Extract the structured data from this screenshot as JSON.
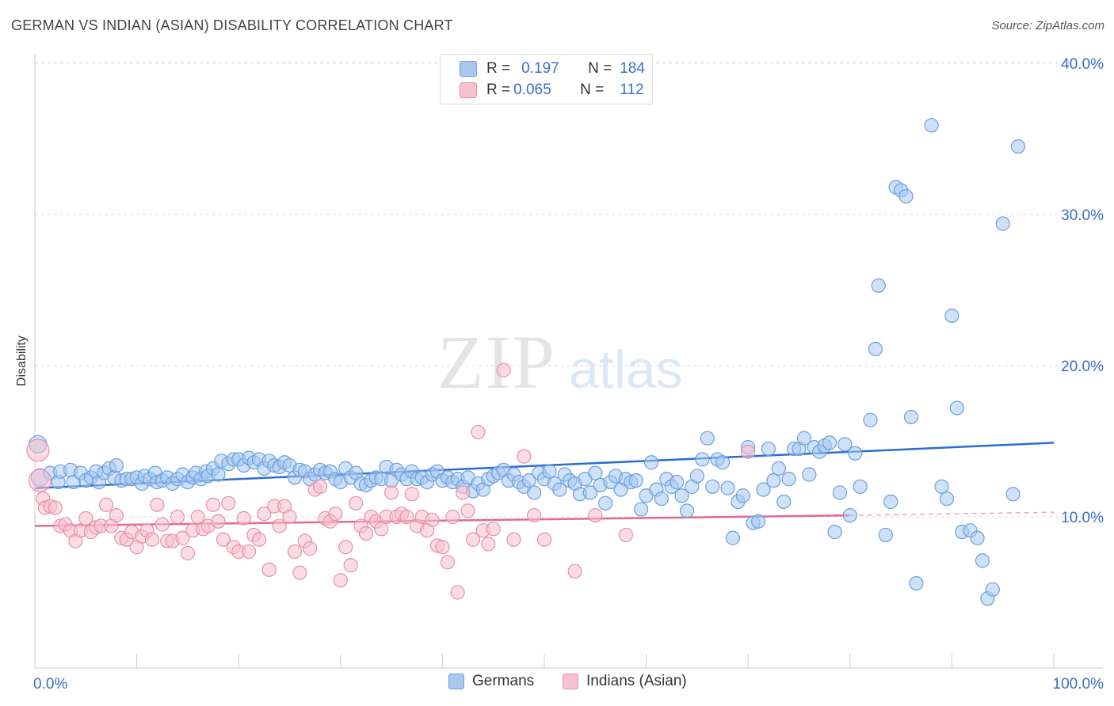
{
  "header": {
    "title": "GERMAN VS INDIAN (ASIAN) DISABILITY CORRELATION CHART",
    "source": "Source: ZipAtlas.com"
  },
  "watermark": {
    "zip": "ZIP",
    "atlas": "atlas"
  },
  "legend": {
    "rows": [
      {
        "r_label": "R =",
        "r_value": "0.197",
        "n_label": "N =",
        "n_value": "184",
        "color": "#a8c8f0",
        "border": "#6a9fe0"
      },
      {
        "r_label": "R =",
        "r_value": "0.065",
        "n_label": "N =",
        "n_value": "112",
        "color": "#f8c0d0",
        "border": "#e890a8"
      }
    ]
  },
  "bottom_legend": [
    {
      "label": "Germans",
      "color": "#a8c8f0",
      "border": "#6a9fe0"
    },
    {
      "label": "Indians (Asian)",
      "color": "#f8c0d0",
      "border": "#e890a8"
    }
  ],
  "chart_data": {
    "type": "scatter",
    "title": "GERMAN VS INDIAN (ASIAN) DISABILITY CORRELATION CHART",
    "xlabel": "",
    "ylabel": "Disability",
    "xlim": [
      0,
      100
    ],
    "ylim": [
      0,
      42
    ],
    "x_tick_labels": [
      "0.0%",
      "100.0%"
    ],
    "y_ticks": [
      10,
      20,
      30,
      40
    ],
    "y_tick_labels": [
      "10.0%",
      "20.0%",
      "30.0%",
      "40.0%"
    ],
    "grid": true,
    "legend_position": "top-center",
    "series": [
      {
        "name": "Germans",
        "color": "#6a9fe0",
        "fill": "#a8c8f0",
        "trend": {
          "x": [
            0,
            100
          ],
          "y": [
            11.9,
            14.9
          ],
          "color": "#2a6dd0"
        },
        "points": [
          [
            0.3,
            14.8
          ],
          [
            0.5,
            12.6
          ],
          [
            1.5,
            12.9
          ],
          [
            2.3,
            12.3
          ],
          [
            2.5,
            13.0
          ],
          [
            3.5,
            13.1
          ],
          [
            3.8,
            12.3
          ],
          [
            4.5,
            12.9
          ],
          [
            5.0,
            12.4
          ],
          [
            5.5,
            12.6
          ],
          [
            6.0,
            13.0
          ],
          [
            6.3,
            12.3
          ],
          [
            6.8,
            12.9
          ],
          [
            7.3,
            13.2
          ],
          [
            7.8,
            12.6
          ],
          [
            8.0,
            13.4
          ],
          [
            8.5,
            12.4
          ],
          [
            9.0,
            12.5
          ],
          [
            9.5,
            12.5
          ],
          [
            10.0,
            12.6
          ],
          [
            10.5,
            12.2
          ],
          [
            10.8,
            12.7
          ],
          [
            11.3,
            12.5
          ],
          [
            11.8,
            12.9
          ],
          [
            12.0,
            12.3
          ],
          [
            12.5,
            12.4
          ],
          [
            13.0,
            12.6
          ],
          [
            13.5,
            12.2
          ],
          [
            14.0,
            12.5
          ],
          [
            14.5,
            12.8
          ],
          [
            15.0,
            12.3
          ],
          [
            15.5,
            12.6
          ],
          [
            15.8,
            12.9
          ],
          [
            16.3,
            12.5
          ],
          [
            16.8,
            13.0
          ],
          [
            17.0,
            12.7
          ],
          [
            17.5,
            13.2
          ],
          [
            18.0,
            12.8
          ],
          [
            18.3,
            13.7
          ],
          [
            19.0,
            13.5
          ],
          [
            19.5,
            13.8
          ],
          [
            20.0,
            13.8
          ],
          [
            20.5,
            13.4
          ],
          [
            21.0,
            13.9
          ],
          [
            21.5,
            13.6
          ],
          [
            22.0,
            13.8
          ],
          [
            22.5,
            13.2
          ],
          [
            23.0,
            13.7
          ],
          [
            23.5,
            13.4
          ],
          [
            24.0,
            13.3
          ],
          [
            24.5,
            13.6
          ],
          [
            25.0,
            13.4
          ],
          [
            25.5,
            12.6
          ],
          [
            26.0,
            13.1
          ],
          [
            26.5,
            13.0
          ],
          [
            27.0,
            12.5
          ],
          [
            27.5,
            12.8
          ],
          [
            28.0,
            13.1
          ],
          [
            28.5,
            12.9
          ],
          [
            29.0,
            13.0
          ],
          [
            29.5,
            12.5
          ],
          [
            30.0,
            12.3
          ],
          [
            30.5,
            13.2
          ],
          [
            31.0,
            12.6
          ],
          [
            31.5,
            12.9
          ],
          [
            32.0,
            12.2
          ],
          [
            32.5,
            12.1
          ],
          [
            33.0,
            12.4
          ],
          [
            33.5,
            12.6
          ],
          [
            34.0,
            12.5
          ],
          [
            34.5,
            13.3
          ],
          [
            35.0,
            12.4
          ],
          [
            35.5,
            13.1
          ],
          [
            36.0,
            12.8
          ],
          [
            36.5,
            12.5
          ],
          [
            37.0,
            13.0
          ],
          [
            37.5,
            12.5
          ],
          [
            38.0,
            12.6
          ],
          [
            38.5,
            12.3
          ],
          [
            39.0,
            12.8
          ],
          [
            39.5,
            13.0
          ],
          [
            40.0,
            12.4
          ],
          [
            40.5,
            12.6
          ],
          [
            41.0,
            12.3
          ],
          [
            41.5,
            12.5
          ],
          [
            42.0,
            12.0
          ],
          [
            42.5,
            12.6
          ],
          [
            43.0,
            11.7
          ],
          [
            43.5,
            12.2
          ],
          [
            44.0,
            11.8
          ],
          [
            44.5,
            12.5
          ],
          [
            45.0,
            12.7
          ],
          [
            45.5,
            12.9
          ],
          [
            46.0,
            13.1
          ],
          [
            46.5,
            12.4
          ],
          [
            47.0,
            12.8
          ],
          [
            47.5,
            12.3
          ],
          [
            48.0,
            12.0
          ],
          [
            48.5,
            12.4
          ],
          [
            49.0,
            11.6
          ],
          [
            49.5,
            12.9
          ],
          [
            50.0,
            12.5
          ],
          [
            50.5,
            13.0
          ],
          [
            51.0,
            12.2
          ],
          [
            51.5,
            11.8
          ],
          [
            52.0,
            12.8
          ],
          [
            52.5,
            12.4
          ],
          [
            53.0,
            12.2
          ],
          [
            53.5,
            11.5
          ],
          [
            54.0,
            12.5
          ],
          [
            54.5,
            11.6
          ],
          [
            55.0,
            12.9
          ],
          [
            55.5,
            12.1
          ],
          [
            56.0,
            10.9
          ],
          [
            56.5,
            12.3
          ],
          [
            57.0,
            12.7
          ],
          [
            57.5,
            11.8
          ],
          [
            58.0,
            12.5
          ],
          [
            58.5,
            12.3
          ],
          [
            59.0,
            12.4
          ],
          [
            59.5,
            10.5
          ],
          [
            60.0,
            11.4
          ],
          [
            60.5,
            13.6
          ],
          [
            61.0,
            11.8
          ],
          [
            61.5,
            11.2
          ],
          [
            62.0,
            12.5
          ],
          [
            62.5,
            12.0
          ],
          [
            63.0,
            12.3
          ],
          [
            63.5,
            11.4
          ],
          [
            64.0,
            10.4
          ],
          [
            64.5,
            12.0
          ],
          [
            65.0,
            12.7
          ],
          [
            65.5,
            13.8
          ],
          [
            66.0,
            15.2
          ],
          [
            66.5,
            12.0
          ],
          [
            67.0,
            13.8
          ],
          [
            67.5,
            13.6
          ],
          [
            68.0,
            11.9
          ],
          [
            68.5,
            8.6
          ],
          [
            69.0,
            11.0
          ],
          [
            69.5,
            11.4
          ],
          [
            70.0,
            14.6
          ],
          [
            70.5,
            9.6
          ],
          [
            71.0,
            9.7
          ],
          [
            71.5,
            11.8
          ],
          [
            72.0,
            14.5
          ],
          [
            72.5,
            12.4
          ],
          [
            73.0,
            13.2
          ],
          [
            73.5,
            11.0
          ],
          [
            74.0,
            12.5
          ],
          [
            74.5,
            14.5
          ],
          [
            75.0,
            14.5
          ],
          [
            75.5,
            15.2
          ],
          [
            76.0,
            12.8
          ],
          [
            76.5,
            14.6
          ],
          [
            77.0,
            14.3
          ],
          [
            77.5,
            14.7
          ],
          [
            78.0,
            14.9
          ],
          [
            78.5,
            9.0
          ],
          [
            79.0,
            11.6
          ],
          [
            79.5,
            14.8
          ],
          [
            80.0,
            10.1
          ],
          [
            80.5,
            14.2
          ],
          [
            81.0,
            12.0
          ],
          [
            82.0,
            16.4
          ],
          [
            82.5,
            21.1
          ],
          [
            82.8,
            25.3
          ],
          [
            83.5,
            8.8
          ],
          [
            84.0,
            11.0
          ],
          [
            84.5,
            31.8
          ],
          [
            85.0,
            31.6
          ],
          [
            85.5,
            31.2
          ],
          [
            86.0,
            16.6
          ],
          [
            86.5,
            5.6
          ],
          [
            88.0,
            35.9
          ],
          [
            89.0,
            12.0
          ],
          [
            89.5,
            11.2
          ],
          [
            90.0,
            23.3
          ],
          [
            90.5,
            17.2
          ],
          [
            91.0,
            9.0
          ],
          [
            91.8,
            9.1
          ],
          [
            92.5,
            8.6
          ],
          [
            93.0,
            7.1
          ],
          [
            93.5,
            4.6
          ],
          [
            94.0,
            5.2
          ],
          [
            95.0,
            29.4
          ],
          [
            96.0,
            11.5
          ],
          [
            96.5,
            34.5
          ]
        ]
      },
      {
        "name": "Indians (Asian)",
        "color": "#e890a8",
        "fill": "#f8c0d0",
        "trend": {
          "x": [
            0,
            80
          ],
          "y": [
            9.4,
            10.1
          ],
          "dashed_x": [
            80,
            100
          ],
          "dashed_y": [
            10.1,
            10.3
          ],
          "color": "#e06a90"
        },
        "points": [
          [
            0.3,
            14.4
          ],
          [
            0.5,
            12.4
          ],
          [
            0.8,
            11.2
          ],
          [
            1.0,
            10.6
          ],
          [
            1.5,
            10.7
          ],
          [
            2.0,
            10.6
          ],
          [
            2.5,
            9.4
          ],
          [
            3.0,
            9.5
          ],
          [
            3.5,
            9.1
          ],
          [
            4.0,
            8.4
          ],
          [
            4.5,
            9.1
          ],
          [
            5.0,
            9.9
          ],
          [
            5.5,
            9.0
          ],
          [
            6.0,
            9.3
          ],
          [
            6.5,
            9.4
          ],
          [
            7.0,
            10.8
          ],
          [
            7.5,
            9.4
          ],
          [
            8.0,
            10.1
          ],
          [
            8.5,
            8.6
          ],
          [
            9.0,
            8.5
          ],
          [
            9.5,
            9.0
          ],
          [
            10.0,
            8.0
          ],
          [
            10.5,
            8.7
          ],
          [
            11.0,
            9.1
          ],
          [
            11.5,
            8.5
          ],
          [
            12.0,
            10.8
          ],
          [
            12.5,
            9.5
          ],
          [
            13.0,
            8.4
          ],
          [
            13.5,
            8.4
          ],
          [
            14.0,
            10.0
          ],
          [
            14.5,
            8.6
          ],
          [
            15.0,
            7.6
          ],
          [
            15.5,
            9.1
          ],
          [
            16.0,
            10.0
          ],
          [
            16.5,
            9.2
          ],
          [
            17.0,
            9.4
          ],
          [
            17.5,
            10.8
          ],
          [
            18.0,
            9.7
          ],
          [
            18.5,
            8.5
          ],
          [
            19.0,
            10.9
          ],
          [
            19.5,
            8.0
          ],
          [
            20.0,
            7.7
          ],
          [
            20.5,
            9.9
          ],
          [
            21.0,
            7.7
          ],
          [
            21.5,
            8.8
          ],
          [
            22.0,
            8.5
          ],
          [
            22.5,
            10.2
          ],
          [
            23.0,
            6.5
          ],
          [
            23.5,
            10.7
          ],
          [
            24.0,
            9.4
          ],
          [
            24.5,
            10.7
          ],
          [
            25.0,
            10.0
          ],
          [
            25.5,
            7.7
          ],
          [
            26.0,
            6.3
          ],
          [
            26.5,
            8.4
          ],
          [
            27.0,
            7.9
          ],
          [
            27.5,
            11.8
          ],
          [
            28.0,
            12.0
          ],
          [
            28.5,
            9.9
          ],
          [
            29.0,
            9.7
          ],
          [
            29.5,
            10.2
          ],
          [
            30.0,
            5.8
          ],
          [
            30.5,
            8.0
          ],
          [
            31.0,
            6.8
          ],
          [
            31.5,
            10.9
          ],
          [
            32.0,
            9.4
          ],
          [
            32.5,
            8.9
          ],
          [
            33.0,
            10.0
          ],
          [
            33.5,
            9.7
          ],
          [
            34.0,
            9.2
          ],
          [
            34.5,
            10.0
          ],
          [
            35.0,
            11.6
          ],
          [
            35.5,
            10.0
          ],
          [
            36.0,
            10.2
          ],
          [
            36.5,
            10.0
          ],
          [
            37.0,
            11.5
          ],
          [
            37.5,
            9.4
          ],
          [
            38.0,
            10.0
          ],
          [
            38.5,
            9.1
          ],
          [
            39.0,
            9.8
          ],
          [
            39.5,
            8.1
          ],
          [
            40.0,
            8.0
          ],
          [
            40.5,
            7.0
          ],
          [
            41.0,
            10.0
          ],
          [
            41.5,
            5.0
          ],
          [
            42.0,
            11.6
          ],
          [
            42.5,
            10.4
          ],
          [
            43.0,
            8.5
          ],
          [
            43.5,
            15.6
          ],
          [
            44.0,
            9.1
          ],
          [
            44.5,
            8.2
          ],
          [
            45.0,
            9.2
          ],
          [
            46.0,
            19.7
          ],
          [
            47.0,
            8.5
          ],
          [
            48.0,
            14.0
          ],
          [
            49.0,
            10.1
          ],
          [
            50.0,
            8.5
          ],
          [
            53.0,
            6.4
          ],
          [
            55.0,
            10.1
          ],
          [
            58.0,
            8.8
          ],
          [
            70.0,
            14.3
          ]
        ]
      }
    ]
  }
}
